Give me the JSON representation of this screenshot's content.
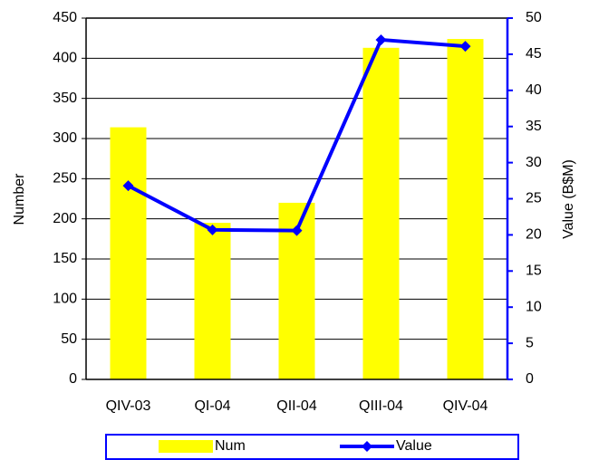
{
  "chart_data": {
    "type": "bar-line",
    "categories": [
      "QIV-03",
      "QI-04",
      "QII-04",
      "QIII-04",
      "QIV-04"
    ],
    "series": [
      {
        "name": "Num",
        "type": "bar",
        "color": "#ffff00",
        "values": [
          314,
          195,
          220,
          413,
          424
        ]
      },
      {
        "name": "Value",
        "type": "line",
        "color": "#0000ff",
        "axis": "y2",
        "values": [
          26.8,
          20.7,
          20.6,
          47.0,
          46.1
        ]
      }
    ],
    "y_label": "Number",
    "y2_label": "Value (B$M)",
    "ylim": [
      0,
      450
    ],
    "yticks": [
      0,
      50,
      100,
      150,
      200,
      250,
      300,
      350,
      400,
      450
    ],
    "y2lim": [
      0,
      50
    ],
    "y2ticks": [
      0,
      5,
      10,
      15,
      20,
      25,
      30,
      35,
      40,
      45,
      50
    ],
    "grid": true,
    "legend": "bottom"
  }
}
